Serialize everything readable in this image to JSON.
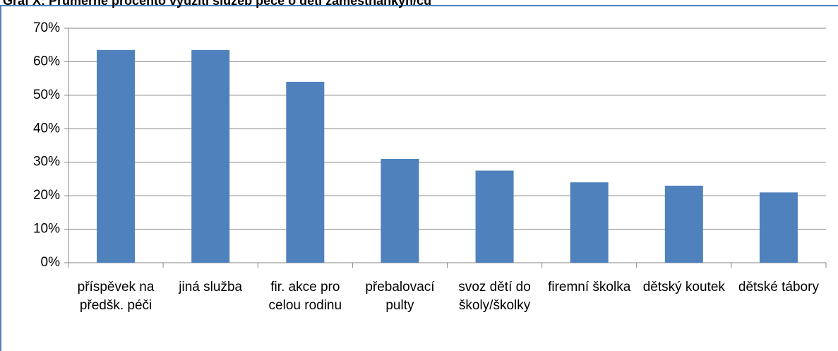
{
  "chart_data": {
    "type": "bar",
    "title": "Graf X: Průměrné procento využití služeb péče o děti zaměstnankyň/ců",
    "categories": [
      "příspěvek na předšk. péči",
      "jiná služba",
      "fir. akce pro celou rodinu",
      "přebalovací pulty",
      "svoz dětí do školy/školky",
      "firemní školka",
      "dětský koutek",
      "dětské tábory"
    ],
    "values": [
      63.5,
      63.5,
      54,
      31,
      27.5,
      24,
      23,
      21
    ],
    "color": "#4f81bd",
    "ylim": [
      0,
      70
    ],
    "yticks": [
      {
        "value": 0,
        "label": "0%"
      },
      {
        "value": 10,
        "label": "10%"
      },
      {
        "value": 20,
        "label": "20%"
      },
      {
        "value": 30,
        "label": "30%"
      },
      {
        "value": 40,
        "label": "40%"
      },
      {
        "value": 50,
        "label": "50%"
      },
      {
        "value": 60,
        "label": "60%"
      },
      {
        "value": 70,
        "label": "70%"
      }
    ],
    "grid": true
  }
}
